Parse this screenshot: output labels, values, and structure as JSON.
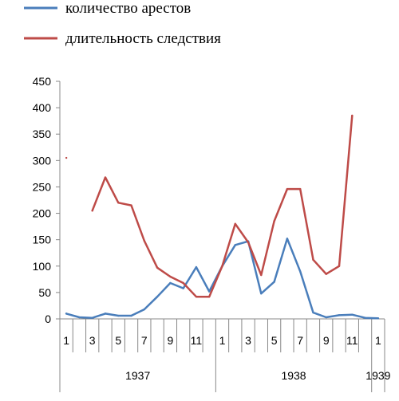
{
  "chart_data": {
    "type": "line",
    "title": "",
    "xlabel": "",
    "ylabel": "",
    "ylim": [
      0,
      450
    ],
    "yticks": [
      0,
      50,
      100,
      150,
      200,
      250,
      300,
      350,
      400,
      450
    ],
    "x": [
      "1937-01",
      "1937-02",
      "1937-03",
      "1937-04",
      "1937-05",
      "1937-06",
      "1937-07",
      "1937-08",
      "1937-09",
      "1937-10",
      "1937-11",
      "1937-12",
      "1938-01",
      "1938-02",
      "1938-03",
      "1938-04",
      "1938-05",
      "1938-06",
      "1938-07",
      "1938-08",
      "1938-09",
      "1938-10",
      "1938-11",
      "1938-12",
      "1939-01"
    ],
    "month_tick_labels": [
      "1",
      "",
      "3",
      "",
      "5",
      "",
      "7",
      "",
      "9",
      "",
      "11",
      "",
      "1",
      "",
      "3",
      "",
      "5",
      "",
      "7",
      "",
      "9",
      "",
      "11",
      "",
      "1"
    ],
    "year_labels": [
      "1937",
      "1938",
      "1939"
    ],
    "grid": false,
    "legend_position": "top-left",
    "series": [
      {
        "name": "количество арестов",
        "color": "#4a7ebb",
        "values": [
          10,
          3,
          2,
          10,
          6,
          6,
          18,
          42,
          68,
          58,
          98,
          52,
          100,
          140,
          147,
          48,
          70,
          152,
          90,
          12,
          3,
          7,
          8,
          2,
          1
        ]
      },
      {
        "name": "длительность следствия",
        "color": "#be4b48",
        "values": [
          305,
          null,
          205,
          268,
          220,
          215,
          148,
          97,
          80,
          68,
          42,
          42,
          100,
          180,
          145,
          83,
          185,
          246,
          246,
          112,
          85,
          100,
          385,
          null,
          null
        ]
      }
    ]
  }
}
